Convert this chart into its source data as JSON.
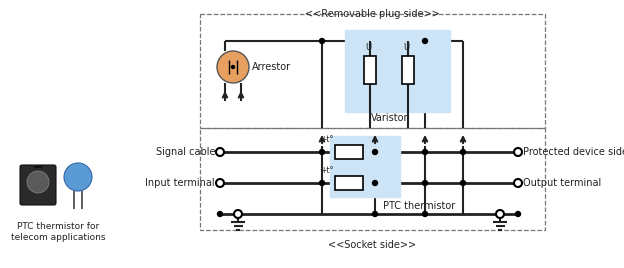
{
  "background_color": "#ffffff",
  "removable_plug_label": "<<Removable plug side>>",
  "socket_label": "<<Socket side>>",
  "arrestor_label": "Arrestor",
  "varistor_label": "Varistor",
  "ptc_label": "PTC thermistor",
  "signal_cable_label": "Signal cable",
  "input_terminal_label": "Input terminal",
  "protected_device_label": "Protected device side",
  "output_terminal_label": "Output terminal",
  "ptc_for_telecom_label": "PTC thermistor for\ntelecom applications",
  "light_blue": "#cce4f5",
  "orange": "#e8a060",
  "blue_component": "#5b9bd5",
  "dark": "#222222",
  "line_width": 1.5,
  "fig_width": 6.24,
  "fig_height": 2.68
}
